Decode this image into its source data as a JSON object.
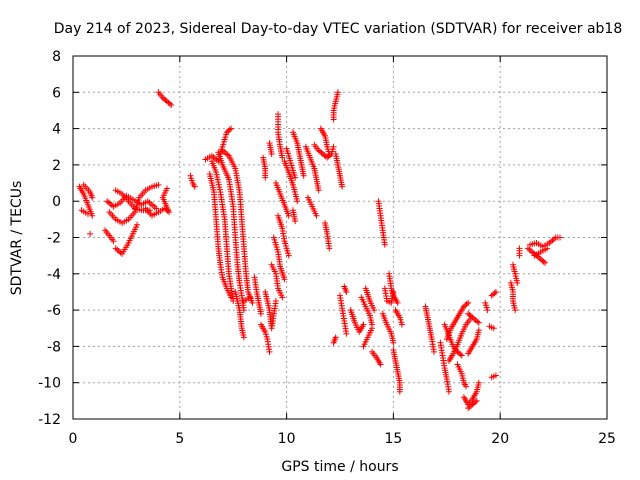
{
  "chart_data": {
    "type": "scatter",
    "title": "Day 214 of 2023, Sidereal Day-to-day VTEC variation (SDTVAR) for receiver ab18",
    "xlabel": "GPS time / hours",
    "ylabel": "SDTVAR / TECUs",
    "xlim": [
      0,
      25
    ],
    "ylim": [
      -12,
      8
    ],
    "xticks": [
      0,
      5,
      10,
      15,
      20,
      25
    ],
    "yticks": [
      -12,
      -10,
      -8,
      -6,
      -4,
      -2,
      0,
      2,
      4,
      6,
      8
    ],
    "grid": true,
    "marker": "+",
    "color": "#ff0000",
    "tracks": [
      [
        [
          0.3,
          0.8
        ],
        [
          0.5,
          0.4
        ],
        [
          0.7,
          -0.2
        ],
        [
          0.9,
          -0.8
        ]
      ],
      [
        [
          0.5,
          0.9
        ],
        [
          0.8,
          0.5
        ],
        [
          0.9,
          0.2
        ]
      ],
      [
        [
          0.4,
          -0.5
        ],
        [
          0.7,
          -0.7
        ]
      ],
      [
        [
          0.8,
          -1.8
        ]
      ],
      [
        [
          1.5,
          -1.6
        ],
        [
          1.7,
          -1.9
        ],
        [
          1.9,
          -2.2
        ]
      ],
      [
        [
          2.0,
          -2.6
        ],
        [
          2.3,
          -2.9
        ],
        [
          2.6,
          -2.3
        ],
        [
          2.8,
          -1.8
        ],
        [
          3.0,
          -1.3
        ]
      ],
      [
        [
          1.6,
          0.0
        ],
        [
          1.9,
          -0.3
        ],
        [
          2.2,
          -0.1
        ],
        [
          2.5,
          0.3
        ],
        [
          2.8,
          0.1
        ],
        [
          3.2,
          -0.2
        ],
        [
          3.5,
          0.0
        ],
        [
          3.9,
          -0.4
        ]
      ],
      [
        [
          2.0,
          0.6
        ],
        [
          2.3,
          0.4
        ],
        [
          2.6,
          0.0
        ],
        [
          2.9,
          -0.4
        ],
        [
          3.2,
          -0.5
        ],
        [
          3.6,
          -0.5
        ]
      ],
      [
        [
          1.7,
          -0.6
        ],
        [
          2.0,
          -1.0
        ],
        [
          2.3,
          -1.2
        ],
        [
          2.6,
          -1.0
        ],
        [
          2.9,
          -0.6
        ],
        [
          3.1,
          0.2
        ],
        [
          3.4,
          0.6
        ],
        [
          3.7,
          0.8
        ],
        [
          4.0,
          0.9
        ]
      ],
      [
        [
          3.4,
          -0.4
        ],
        [
          3.7,
          -0.8
        ],
        [
          4.0,
          -0.6
        ],
        [
          4.3,
          -0.4
        ],
        [
          4.5,
          -0.6
        ],
        [
          4.2,
          0.2
        ],
        [
          4.4,
          0.7
        ]
      ],
      [
        [
          4.0,
          6.0
        ],
        [
          4.2,
          5.7
        ],
        [
          4.4,
          5.5
        ],
        [
          4.6,
          5.3
        ]
      ],
      [
        [
          5.5,
          1.4
        ],
        [
          5.6,
          1.0
        ],
        [
          5.7,
          0.8
        ]
      ],
      [
        [
          6.2,
          2.3
        ],
        [
          6.5,
          2.5
        ],
        [
          6.8,
          2.2
        ],
        [
          7.0,
          3.0
        ],
        [
          7.2,
          3.8
        ],
        [
          7.4,
          4.0
        ]
      ],
      [
        [
          6.4,
          1.5
        ],
        [
          6.6,
          0.5
        ],
        [
          6.7,
          -1.0
        ],
        [
          6.8,
          -2.5
        ],
        [
          6.9,
          -3.5
        ],
        [
          7.0,
          -4.2
        ],
        [
          7.2,
          -4.8
        ],
        [
          7.4,
          -5.3
        ]
      ],
      [
        [
          6.5,
          2.2
        ],
        [
          6.7,
          1.6
        ],
        [
          6.9,
          0.5
        ],
        [
          7.1,
          -1.0
        ],
        [
          7.2,
          -2.5
        ],
        [
          7.3,
          -4.0
        ],
        [
          7.5,
          -5.5
        ]
      ],
      [
        [
          6.8,
          2.7
        ],
        [
          7.0,
          2.0
        ],
        [
          7.3,
          1.2
        ],
        [
          7.5,
          -0.3
        ],
        [
          7.6,
          -2.0
        ],
        [
          7.7,
          -3.5
        ],
        [
          7.8,
          -4.5
        ],
        [
          7.9,
          -5.2
        ],
        [
          8.0,
          -6.0
        ]
      ],
      [
        [
          7.0,
          2.8
        ],
        [
          7.3,
          2.5
        ],
        [
          7.6,
          1.8
        ],
        [
          7.8,
          0.5
        ],
        [
          7.9,
          -1.0
        ],
        [
          8.0,
          -2.5
        ],
        [
          8.1,
          -4.0
        ],
        [
          8.2,
          -5.0
        ],
        [
          8.4,
          -5.6
        ]
      ],
      [
        [
          7.6,
          -5.0
        ],
        [
          7.8,
          -6.0
        ],
        [
          7.9,
          -7.0
        ],
        [
          8.0,
          -7.5
        ]
      ],
      [
        [
          8.0,
          -5.5
        ],
        [
          8.3,
          -5.3
        ]
      ],
      [
        [
          8.5,
          -4.2
        ],
        [
          8.6,
          -5.0
        ],
        [
          8.7,
          -5.6
        ],
        [
          8.8,
          -6.2
        ]
      ],
      [
        [
          8.8,
          -6.8
        ],
        [
          9.0,
          -7.2
        ],
        [
          9.1,
          -7.6
        ],
        [
          9.2,
          -8.3
        ]
      ],
      [
        [
          9.0,
          -5.0
        ],
        [
          9.2,
          -6.0
        ],
        [
          9.3,
          -7.0
        ],
        [
          9.5,
          -5.5
        ]
      ],
      [
        [
          9.3,
          -3.5
        ],
        [
          9.5,
          -4.0
        ],
        [
          9.6,
          -4.8
        ],
        [
          9.8,
          -5.3
        ]
      ],
      [
        [
          9.4,
          -2.0
        ],
        [
          9.6,
          -2.8
        ],
        [
          9.7,
          -3.6
        ],
        [
          9.9,
          -4.3
        ]
      ],
      [
        [
          9.6,
          -0.8
        ],
        [
          9.8,
          -1.5
        ],
        [
          9.9,
          -2.2
        ],
        [
          10.1,
          -3.0
        ]
      ],
      [
        [
          9.5,
          1.0
        ],
        [
          9.7,
          0.4
        ],
        [
          9.9,
          -0.2
        ],
        [
          10.1,
          -0.8
        ]
      ],
      [
        [
          9.6,
          4.8
        ],
        [
          9.6,
          3.8
        ],
        [
          9.7,
          3.0
        ],
        [
          9.8,
          2.4
        ]
      ],
      [
        [
          9.9,
          2.2
        ],
        [
          10.1,
          1.6
        ],
        [
          10.3,
          0.9
        ],
        [
          10.5,
          0.0
        ]
      ],
      [
        [
          10.0,
          2.9
        ],
        [
          10.2,
          2.1
        ],
        [
          10.4,
          1.3
        ]
      ],
      [
        [
          10.3,
          -0.5
        ],
        [
          10.4,
          -1.1
        ]
      ],
      [
        [
          8.9,
          2.4
        ],
        [
          9.0,
          1.8
        ],
        [
          9.0,
          1.3
        ]
      ],
      [
        [
          9.2,
          3.2
        ],
        [
          9.3,
          2.6
        ]
      ],
      [
        [
          10.3,
          3.8
        ],
        [
          10.5,
          3.2
        ],
        [
          10.6,
          2.6
        ],
        [
          10.7,
          2.0
        ],
        [
          10.8,
          1.4
        ]
      ],
      [
        [
          10.9,
          3.0
        ],
        [
          11.1,
          2.4
        ],
        [
          11.3,
          1.8
        ],
        [
          11.4,
          1.2
        ],
        [
          11.5,
          0.6
        ]
      ],
      [
        [
          11.0,
          0.2
        ],
        [
          11.2,
          -0.3
        ],
        [
          11.4,
          -0.8
        ]
      ],
      [
        [
          11.3,
          3.1
        ],
        [
          11.5,
          2.8
        ],
        [
          11.7,
          2.6
        ],
        [
          11.9,
          2.4
        ],
        [
          12.1,
          2.6
        ],
        [
          12.2,
          3.0
        ]
      ],
      [
        [
          11.6,
          4.0
        ],
        [
          11.8,
          3.6
        ],
        [
          11.9,
          3.0
        ],
        [
          12.0,
          2.6
        ]
      ],
      [
        [
          11.8,
          -1.2
        ],
        [
          11.9,
          -1.8
        ],
        [
          12.0,
          -2.6
        ]
      ],
      [
        [
          12.4,
          6.0
        ],
        [
          12.3,
          5.5
        ],
        [
          12.2,
          5.0
        ],
        [
          12.2,
          4.5
        ]
      ],
      [
        [
          12.3,
          2.6
        ],
        [
          12.4,
          2.0
        ],
        [
          12.5,
          1.4
        ],
        [
          12.6,
          0.8
        ]
      ],
      [
        [
          12.2,
          -7.8
        ],
        [
          12.3,
          -7.5
        ]
      ],
      [
        [
          12.5,
          -5.2
        ],
        [
          12.6,
          -5.9
        ],
        [
          12.7,
          -6.6
        ],
        [
          12.8,
          -7.3
        ]
      ],
      [
        [
          12.7,
          -4.7
        ],
        [
          12.8,
          -5.0
        ]
      ],
      [
        [
          13.0,
          -6.0
        ],
        [
          13.2,
          -6.7
        ],
        [
          13.4,
          -7.2
        ],
        [
          13.6,
          -6.8
        ]
      ],
      [
        [
          13.5,
          -5.3
        ],
        [
          13.7,
          -5.8
        ],
        [
          13.9,
          -6.3
        ],
        [
          14.0,
          -6.8
        ]
      ],
      [
        [
          13.6,
          -8.0
        ],
        [
          13.8,
          -7.5
        ],
        [
          14.0,
          -7.0
        ]
      ],
      [
        [
          13.7,
          -4.8
        ],
        [
          13.9,
          -5.5
        ],
        [
          14.1,
          -6.0
        ]
      ],
      [
        [
          14.0,
          -8.3
        ],
        [
          14.2,
          -8.6
        ],
        [
          14.4,
          -9.0
        ]
      ],
      [
        [
          14.3,
          0.0
        ],
        [
          14.4,
          -0.8
        ],
        [
          14.5,
          -1.6
        ],
        [
          14.6,
          -2.4
        ]
      ],
      [
        [
          14.6,
          -4.8
        ],
        [
          14.7,
          -5.5
        ],
        [
          14.9,
          -5.6
        ],
        [
          15.0,
          -5.0
        ]
      ],
      [
        [
          14.5,
          -6.2
        ],
        [
          14.7,
          -6.8
        ],
        [
          14.9,
          -7.3
        ],
        [
          15.0,
          -7.8
        ]
      ],
      [
        [
          14.8,
          -4.0
        ],
        [
          14.9,
          -4.8
        ],
        [
          15.0,
          -5.2
        ],
        [
          15.2,
          -5.6
        ]
      ],
      [
        [
          15.0,
          -8.2
        ],
        [
          15.1,
          -8.8
        ],
        [
          15.2,
          -9.4
        ],
        [
          15.3,
          -10.0
        ],
        [
          15.3,
          -10.5
        ]
      ],
      [
        [
          15.1,
          -6.0
        ],
        [
          15.3,
          -6.4
        ],
        [
          15.4,
          -6.8
        ]
      ],
      [
        [
          16.5,
          -5.8
        ],
        [
          16.6,
          -6.4
        ],
        [
          16.7,
          -7.0
        ],
        [
          16.8,
          -7.6
        ],
        [
          16.9,
          -8.3
        ]
      ],
      [
        [
          17.2,
          -7.8
        ],
        [
          17.3,
          -8.5
        ],
        [
          17.4,
          -9.2
        ],
        [
          17.5,
          -9.8
        ],
        [
          17.6,
          -10.5
        ]
      ],
      [
        [
          17.4,
          -6.8
        ],
        [
          17.6,
          -7.4
        ],
        [
          17.8,
          -8.0
        ],
        [
          18.0,
          -8.3
        ],
        [
          18.2,
          -8.5
        ]
      ],
      [
        [
          17.5,
          -7.6
        ],
        [
          17.7,
          -7.0
        ],
        [
          17.9,
          -6.6
        ],
        [
          18.1,
          -6.2
        ],
        [
          18.3,
          -5.8
        ],
        [
          18.5,
          -5.6
        ]
      ],
      [
        [
          17.6,
          -8.8
        ],
        [
          17.8,
          -8.4
        ],
        [
          18.0,
          -7.9
        ],
        [
          18.2,
          -7.3
        ],
        [
          18.4,
          -6.8
        ],
        [
          18.6,
          -6.5
        ]
      ],
      [
        [
          18.0,
          -9.0
        ],
        [
          18.2,
          -9.5
        ],
        [
          18.3,
          -10.0
        ],
        [
          18.4,
          -10.2
        ]
      ],
      [
        [
          18.3,
          -10.8
        ],
        [
          18.5,
          -11.2
        ],
        [
          18.7,
          -10.9
        ],
        [
          18.9,
          -10.5
        ],
        [
          19.0,
          -10.0
        ]
      ],
      [
        [
          18.5,
          -11.4
        ],
        [
          18.7,
          -11.2
        ],
        [
          18.9,
          -11.0
        ]
      ],
      [
        [
          18.5,
          -8.4
        ],
        [
          18.7,
          -8.0
        ],
        [
          18.9,
          -7.6
        ],
        [
          19.0,
          -7.1
        ]
      ],
      [
        [
          18.5,
          -6.2
        ],
        [
          18.7,
          -6.4
        ],
        [
          19.0,
          -6.7
        ]
      ],
      [
        [
          19.3,
          -5.6
        ],
        [
          19.4,
          -6.0
        ]
      ],
      [
        [
          19.5,
          -6.9
        ],
        [
          19.7,
          -7.0
        ]
      ],
      [
        [
          19.6,
          -5.2
        ],
        [
          19.8,
          -5.0
        ]
      ],
      [
        [
          19.6,
          -9.7
        ],
        [
          19.8,
          -9.6
        ]
      ],
      [
        [
          20.5,
          -4.5
        ],
        [
          20.6,
          -5.0
        ],
        [
          20.6,
          -5.5
        ],
        [
          20.7,
          -6.0
        ]
      ],
      [
        [
          20.6,
          -3.5
        ],
        [
          20.7,
          -4.0
        ],
        [
          20.8,
          -4.5
        ]
      ],
      [
        [
          20.9,
          -3.0
        ],
        [
          20.9,
          -2.6
        ]
      ],
      [
        [
          21.3,
          -2.6
        ],
        [
          21.6,
          -2.9
        ],
        [
          21.9,
          -3.2
        ],
        [
          22.1,
          -3.4
        ]
      ],
      [
        [
          21.4,
          -2.4
        ],
        [
          21.7,
          -2.3
        ],
        [
          22.0,
          -2.5
        ],
        [
          22.3,
          -2.3
        ],
        [
          22.6,
          -2.0
        ],
        [
          22.8,
          -2.0
        ]
      ],
      [
        [
          21.6,
          -3.0
        ],
        [
          21.9,
          -2.8
        ],
        [
          22.2,
          -2.6
        ]
      ]
    ]
  }
}
